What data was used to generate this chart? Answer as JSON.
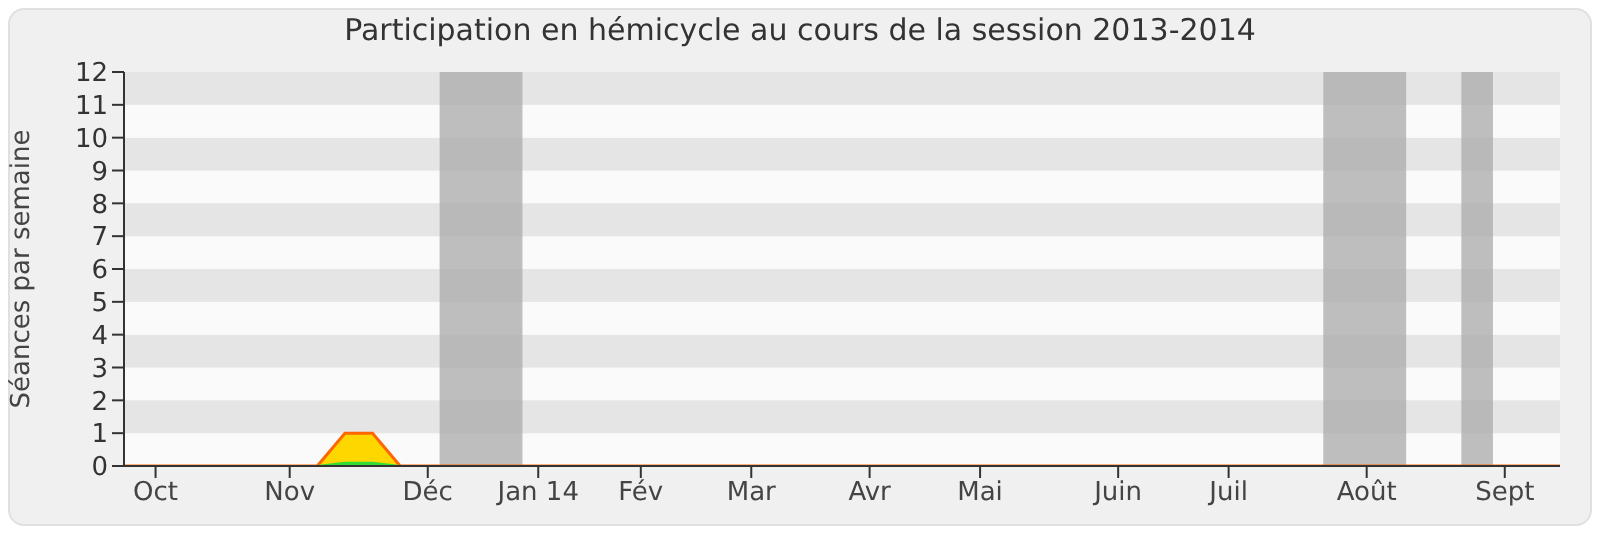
{
  "chart_data": {
    "type": "area",
    "title": "Participation en hémicycle au cours de la session 2013-2014",
    "ylabel": "Séances par semaine",
    "x": [
      "2013-09-23",
      "2013-11-11",
      "2013-11-18",
      "2013-11-25",
      "2013-12-02",
      "2014-09-22"
    ],
    "series": [
      {
        "color": "#ffd700",
        "values": [
          0,
          0,
          1,
          1,
          0,
          0
        ]
      },
      {
        "color": "#33dd33",
        "values": [
          0,
          0,
          0.1,
          0.1,
          0,
          0
        ]
      }
    ],
    "xlim": [
      "2013-09-23",
      "2014-09-22"
    ],
    "xticks": [
      {
        "value": "2013-10-01",
        "label": "Oct"
      },
      {
        "value": "2013-11-04",
        "label": "Nov"
      },
      {
        "value": "2013-12-09",
        "label": "Déc"
      },
      {
        "value": "2014-01-06",
        "label": "Jan 14"
      },
      {
        "value": "2014-02-01",
        "label": "Fév"
      },
      {
        "value": "2014-03-01",
        "label": "Mar"
      },
      {
        "value": "2014-03-31",
        "label": "Avr"
      },
      {
        "value": "2014-04-28",
        "label": "Mai"
      },
      {
        "value": "2014-06-02",
        "label": "Juin"
      },
      {
        "value": "2014-06-30",
        "label": "Juil"
      },
      {
        "value": "2014-08-04",
        "label": "Août"
      },
      {
        "value": "2014-09-08",
        "label": "Sept"
      }
    ],
    "ylim": [
      0,
      12
    ],
    "yticks": [
      0,
      1,
      2,
      3,
      4,
      5,
      6,
      7,
      8,
      9,
      10,
      11,
      12
    ],
    "bands": [
      {
        "axis": "x",
        "from": "2013-12-12",
        "to": "2014-01-02",
        "color": "#aaaaaa"
      },
      {
        "axis": "x",
        "from": "2014-07-24",
        "to": "2014-08-14",
        "color": "#aaaaaa"
      },
      {
        "axis": "x",
        "from": "2014-08-28",
        "to": "2014-09-05",
        "color": "#aaaaaa"
      }
    ],
    "legend": false
  }
}
